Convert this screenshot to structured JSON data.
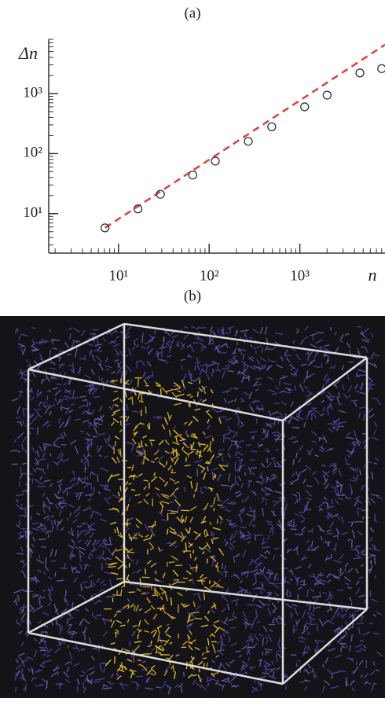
{
  "chart_data": {
    "type": "scatter",
    "title": "(a)",
    "x_label": "n",
    "y_label": "Δn",
    "x": [
      7.1,
      16.4,
      29,
      66,
      117,
      270,
      490,
      1130,
      2000,
      4600,
      8000
    ],
    "values": [
      5.8,
      12,
      21,
      44,
      75,
      160,
      280,
      600,
      940,
      2200,
      2600
    ],
    "color": "#333333",
    "fit_line": {
      "x": [
        7.1,
        8700
      ],
      "values": [
        5.8,
        6500
      ],
      "color": "#e0403a"
    },
    "x_log": true,
    "y_log": true,
    "xlim": [
      1.7,
      8700
    ],
    "ylim": [
      2.2,
      8000
    ],
    "xticks": [
      {
        "value": 10,
        "label": "10¹"
      },
      {
        "value": 100,
        "label": "10²"
      },
      {
        "value": 1000,
        "label": "10³"
      }
    ],
    "yticks": [
      {
        "value": 10,
        "label": "10¹"
      },
      {
        "value": 100,
        "label": "10²"
      },
      {
        "value": 1000,
        "label": "10³"
      }
    ]
  },
  "panel_b": {
    "label": "(b)"
  }
}
